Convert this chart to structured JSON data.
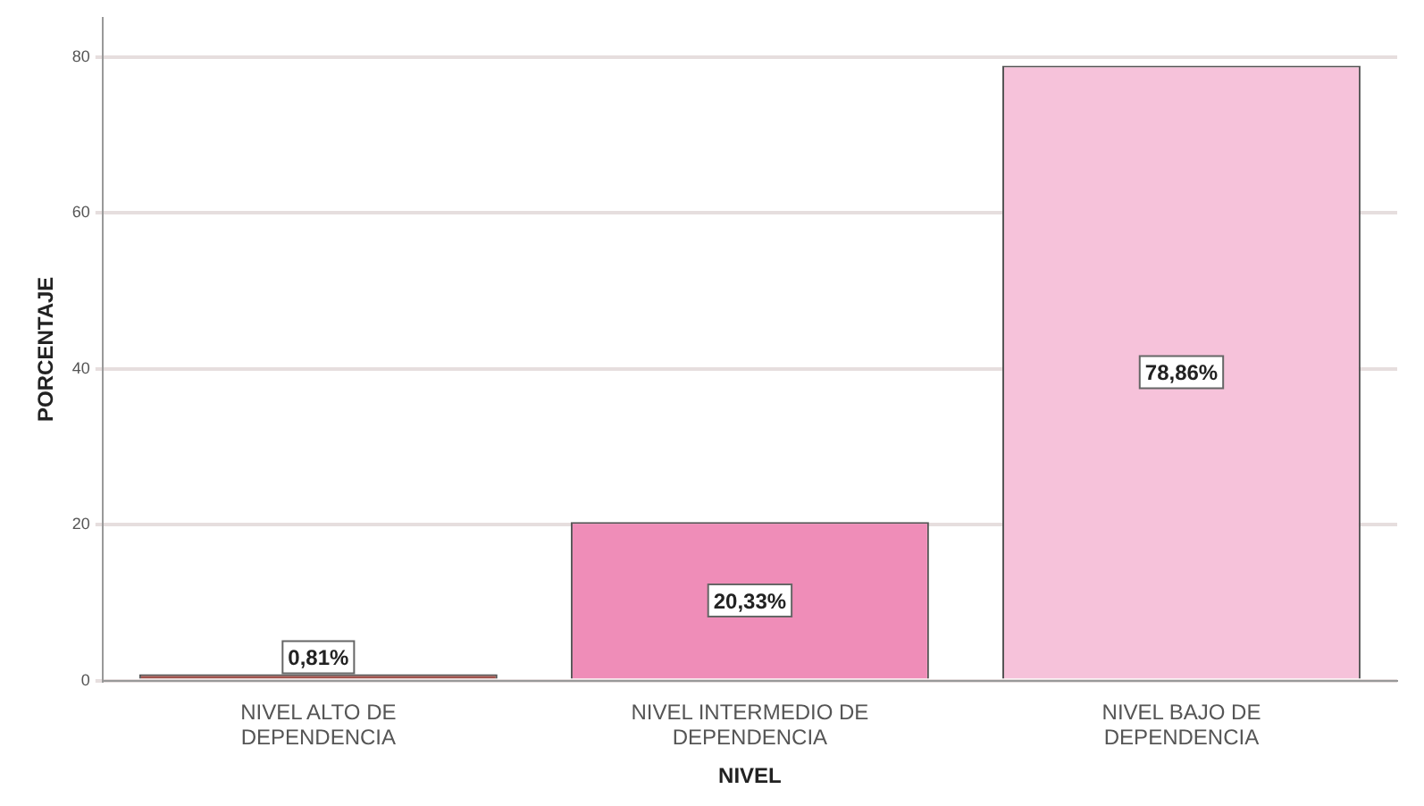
{
  "chart_data": {
    "type": "bar",
    "xlabel": "NIVEL",
    "ylabel": "PORCENTAJE",
    "categories": [
      "NIVEL ALTO DE DEPENDENCIA",
      "NIVEL INTERMEDIO DE DEPENDENCIA",
      "NIVEL BAJO DE DEPENDENCIA"
    ],
    "values": [
      0.81,
      20.33,
      78.86
    ],
    "colors": [
      "#a0524c",
      "#ef8db8",
      "#f6c2da"
    ],
    "value_labels": [
      "0,81%",
      "20,33%",
      "78,86%"
    ],
    "ylim": [
      0,
      85
    ],
    "yticks": [
      0,
      20,
      40,
      60,
      80
    ],
    "grid": "y",
    "legend": false
  }
}
